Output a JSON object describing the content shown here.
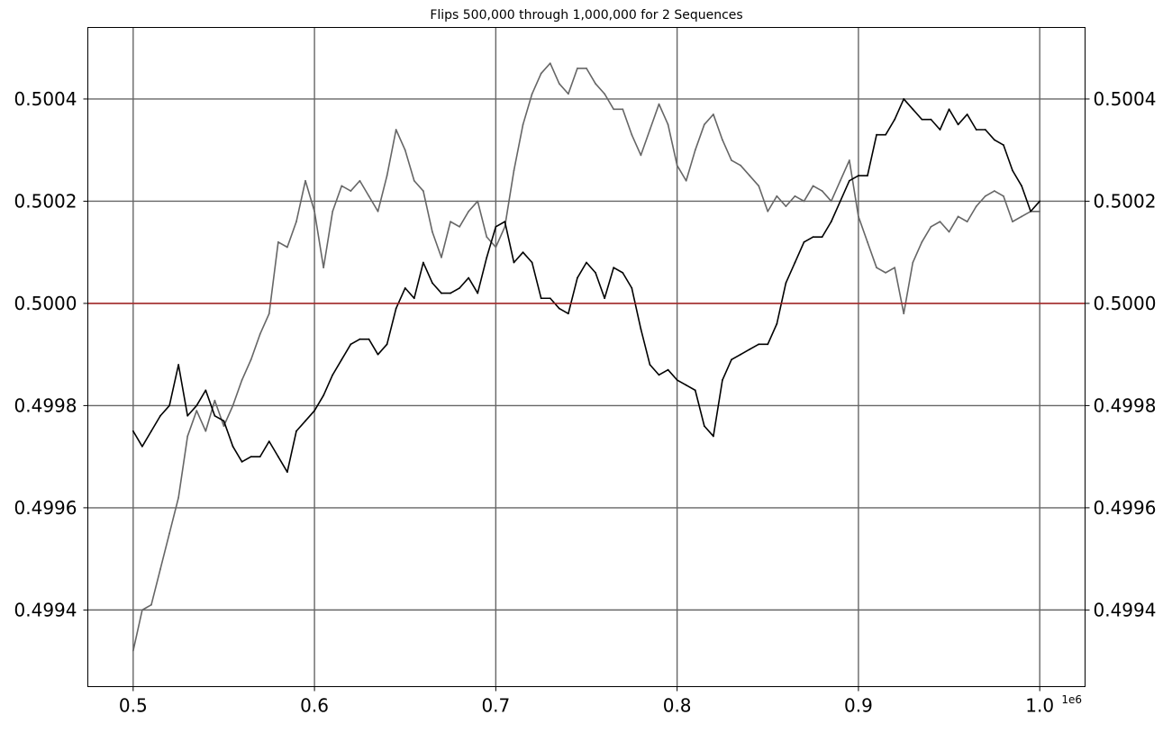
{
  "chart_data": {
    "type": "line",
    "title": "Flips 500,000 through 1,000,000 for 2 Sequences",
    "xlabel": "",
    "ylabel": "",
    "x_offset_label": "1e6",
    "xlim": [
      0.475,
      1.025
    ],
    "ylim": [
      0.49925,
      0.50054
    ],
    "x_ticks": [
      0.5,
      0.6,
      0.7,
      0.8,
      0.9,
      1.0
    ],
    "x_tick_labels": [
      "0.5",
      "0.6",
      "0.7",
      "0.8",
      "0.9",
      "1.0"
    ],
    "y_ticks": [
      0.4994,
      0.4996,
      0.4998,
      0.5,
      0.5002,
      0.5004
    ],
    "y_tick_labels": [
      "0.4994",
      "0.4996",
      "0.4998",
      "0.5000",
      "0.5002",
      "0.5004"
    ],
    "y_ticks_both_sides": true,
    "grid": true,
    "grid_color": "#666666",
    "reference_line": {
      "y": 0.5,
      "color": "#b22222"
    },
    "series": [
      {
        "color": "#666666",
        "x": [
          0.5,
          0.505,
          0.51,
          0.515,
          0.52,
          0.525,
          0.53,
          0.535,
          0.54,
          0.545,
          0.55,
          0.555,
          0.56,
          0.565,
          0.57,
          0.575,
          0.58,
          0.585,
          0.59,
          0.595,
          0.6,
          0.605,
          0.61,
          0.615,
          0.62,
          0.625,
          0.63,
          0.635,
          0.64,
          0.645,
          0.65,
          0.655,
          0.66,
          0.665,
          0.67,
          0.675,
          0.68,
          0.685,
          0.69,
          0.695,
          0.7,
          0.705,
          0.71,
          0.715,
          0.72,
          0.725,
          0.73,
          0.735,
          0.74,
          0.745,
          0.75,
          0.755,
          0.76,
          0.765,
          0.77,
          0.775,
          0.78,
          0.785,
          0.79,
          0.795,
          0.8,
          0.805,
          0.81,
          0.815,
          0.82,
          0.825,
          0.83,
          0.835,
          0.84,
          0.845,
          0.85,
          0.855,
          0.86,
          0.865,
          0.87,
          0.875,
          0.88,
          0.885,
          0.89,
          0.895,
          0.9,
          0.905,
          0.91,
          0.915,
          0.92,
          0.925,
          0.93,
          0.935,
          0.94,
          0.945,
          0.95,
          0.955,
          0.96,
          0.965,
          0.97,
          0.975,
          0.98,
          0.985,
          0.99,
          0.995,
          1.0
        ],
        "values": [
          0.49932,
          0.4994,
          0.49941,
          0.49948,
          0.49955,
          0.49962,
          0.49974,
          0.49979,
          0.49975,
          0.49981,
          0.49976,
          0.4998,
          0.49985,
          0.49989,
          0.49994,
          0.49998,
          0.50012,
          0.50011,
          0.50016,
          0.50024,
          0.50018,
          0.50007,
          0.50018,
          0.50023,
          0.50022,
          0.50024,
          0.50021,
          0.50018,
          0.50025,
          0.50034,
          0.5003,
          0.50024,
          0.50022,
          0.50014,
          0.50009,
          0.50016,
          0.50015,
          0.50018,
          0.5002,
          0.50013,
          0.50011,
          0.50015,
          0.50026,
          0.50035,
          0.50041,
          0.50045,
          0.50047,
          0.50043,
          0.50041,
          0.50046,
          0.50046,
          0.50043,
          0.50041,
          0.50038,
          0.50038,
          0.50033,
          0.50029,
          0.50034,
          0.50039,
          0.50035,
          0.50027,
          0.50024,
          0.5003,
          0.50035,
          0.50037,
          0.50032,
          0.50028,
          0.50027,
          0.50025,
          0.50023,
          0.50018,
          0.50021,
          0.50019,
          0.50021,
          0.5002,
          0.50023,
          0.50022,
          0.5002,
          0.50024,
          0.50028,
          0.50017,
          0.50012,
          0.50007,
          0.50006,
          0.50007,
          0.49998,
          0.50008,
          0.50012,
          0.50015,
          0.50016,
          0.50014,
          0.50017,
          0.50016,
          0.50019,
          0.50021,
          0.50022,
          0.50021,
          0.50016,
          0.50017,
          0.50018,
          0.50018
        ]
      },
      {
        "color": "#000000",
        "x": [
          0.5,
          0.505,
          0.51,
          0.515,
          0.52,
          0.525,
          0.53,
          0.535,
          0.54,
          0.545,
          0.55,
          0.555,
          0.56,
          0.565,
          0.57,
          0.575,
          0.58,
          0.585,
          0.59,
          0.595,
          0.6,
          0.605,
          0.61,
          0.615,
          0.62,
          0.625,
          0.63,
          0.635,
          0.64,
          0.645,
          0.65,
          0.655,
          0.66,
          0.665,
          0.67,
          0.675,
          0.68,
          0.685,
          0.69,
          0.695,
          0.7,
          0.705,
          0.71,
          0.715,
          0.72,
          0.725,
          0.73,
          0.735,
          0.74,
          0.745,
          0.75,
          0.755,
          0.76,
          0.765,
          0.77,
          0.775,
          0.78,
          0.785,
          0.79,
          0.795,
          0.8,
          0.805,
          0.81,
          0.815,
          0.82,
          0.825,
          0.83,
          0.835,
          0.84,
          0.845,
          0.85,
          0.855,
          0.86,
          0.865,
          0.87,
          0.875,
          0.88,
          0.885,
          0.89,
          0.895,
          0.9,
          0.905,
          0.91,
          0.915,
          0.92,
          0.925,
          0.93,
          0.935,
          0.94,
          0.945,
          0.95,
          0.955,
          0.96,
          0.965,
          0.97,
          0.975,
          0.98,
          0.985,
          0.99,
          0.995,
          1.0
        ],
        "values": [
          0.49975,
          0.49972,
          0.49975,
          0.49978,
          0.4998,
          0.49988,
          0.49978,
          0.4998,
          0.49983,
          0.49978,
          0.49977,
          0.49972,
          0.49969,
          0.4997,
          0.4997,
          0.49973,
          0.4997,
          0.49967,
          0.49975,
          0.49977,
          0.49979,
          0.49982,
          0.49986,
          0.49989,
          0.49992,
          0.49993,
          0.49993,
          0.4999,
          0.49992,
          0.49999,
          0.50003,
          0.50001,
          0.50008,
          0.50004,
          0.50002,
          0.50002,
          0.50003,
          0.50005,
          0.50002,
          0.50009,
          0.50015,
          0.50016,
          0.50008,
          0.5001,
          0.50008,
          0.50001,
          0.50001,
          0.49999,
          0.49998,
          0.50005,
          0.50008,
          0.50006,
          0.50001,
          0.50007,
          0.50006,
          0.50003,
          0.49995,
          0.49988,
          0.49986,
          0.49987,
          0.49985,
          0.49984,
          0.49983,
          0.49976,
          0.49974,
          0.49985,
          0.49989,
          0.4999,
          0.49991,
          0.49992,
          0.49992,
          0.49996,
          0.50004,
          0.50008,
          0.50012,
          0.50013,
          0.50013,
          0.50016,
          0.5002,
          0.50024,
          0.50025,
          0.50025,
          0.50033,
          0.50033,
          0.50036,
          0.5004,
          0.50038,
          0.50036,
          0.50036,
          0.50034,
          0.50038,
          0.50035,
          0.50037,
          0.50034,
          0.50034,
          0.50032,
          0.50031,
          0.50026,
          0.50023,
          0.50018,
          0.5002
        ]
      }
    ]
  }
}
